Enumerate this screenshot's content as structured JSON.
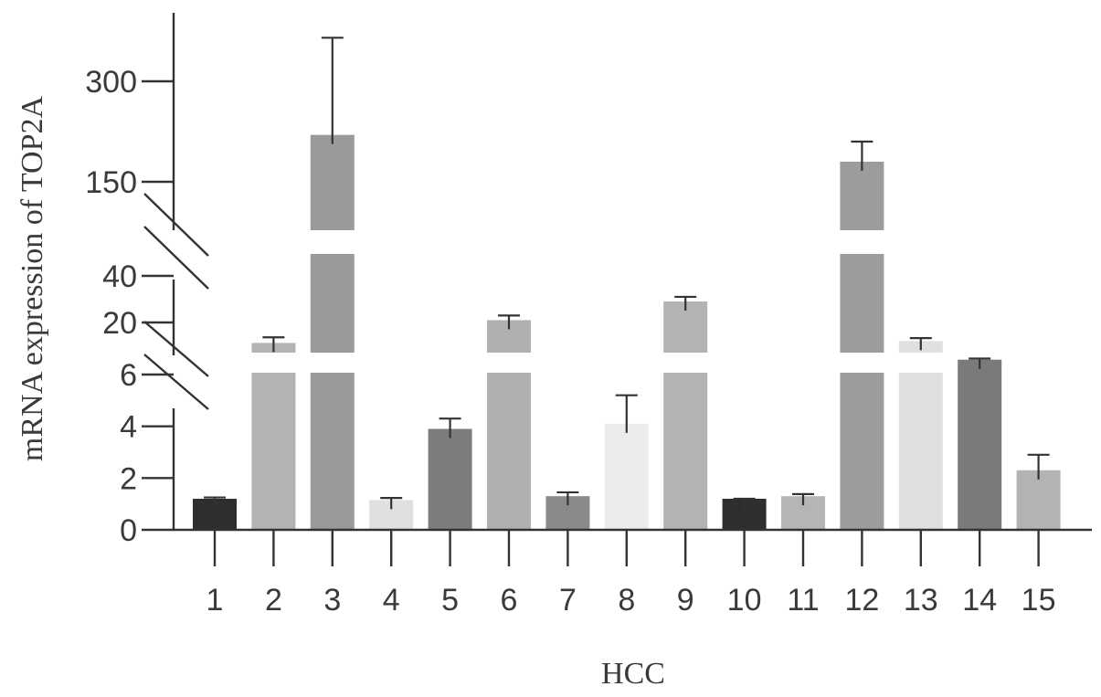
{
  "chart_data": {
    "type": "bar",
    "xlabel": "HCC",
    "ylabel": "mRNA expression of  TOP2A",
    "categories": [
      "1",
      "2",
      "3",
      "4",
      "5",
      "6",
      "7",
      "8",
      "9",
      "10",
      "11",
      "12",
      "13",
      "14",
      "15"
    ],
    "values": [
      1.2,
      14.5,
      220,
      1.15,
      3.9,
      21,
      1.3,
      4.1,
      29,
      1.2,
      1.3,
      180,
      15,
      10,
      2.3
    ],
    "errors": [
      0.05,
      1.5,
      145,
      0.08,
      0.4,
      2,
      0.15,
      1.1,
      2,
      0.0,
      0.08,
      30,
      0.8,
      0.3,
      0.6
    ],
    "colors": [
      "#2e2e2e",
      "#b3b3b3",
      "#9a9a9a",
      "#e0e0e0",
      "#7d7d7d",
      "#b0b0b0",
      "#8a8a8a",
      "#ececec",
      "#b3b3b3",
      "#2e2e2e",
      "#b5b5b5",
      "#9c9c9c",
      "#e0e0e0",
      "#7a7a7a",
      "#b3b3b3"
    ],
    "y_segments": [
      {
        "range": [
          0,
          6
        ],
        "ticks": [
          0,
          2,
          4,
          6
        ]
      },
      {
        "range": [
          20,
          40
        ],
        "ticks": [
          20,
          40
        ]
      },
      {
        "range": [
          150,
          300
        ],
        "ticks": [
          150,
          300
        ]
      }
    ],
    "axis_breaks": [
      "6-20",
      "40-150"
    ],
    "grid": false,
    "legend": "none"
  }
}
